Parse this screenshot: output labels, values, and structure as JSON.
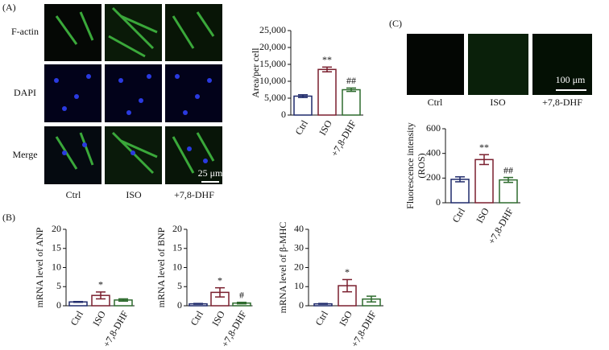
{
  "figure": {
    "panel_a": "(A)",
    "panel_b": "(B)",
    "panel_c": "(C)",
    "rows": [
      "F-actin",
      "DAPI",
      "Merge"
    ],
    "columns_a": [
      "Ctrl",
      "ISO",
      "+7,8-DHF"
    ],
    "scale_a": "25 μm",
    "columns_c": [
      "Ctrl",
      "ISO",
      "+7,8-DHF"
    ],
    "scale_c": "100 μm"
  },
  "chart_data": [
    {
      "type": "bar",
      "y_label": "Area/per cell",
      "categories": [
        "Ctrl",
        "ISO",
        "+7,8-DHF"
      ],
      "values": [
        5600,
        13500,
        7500
      ],
      "errors": [
        400,
        700,
        500
      ],
      "colors": [
        "#1f2a6b",
        "#7a1f2e",
        "#2e6b2e"
      ],
      "annotations": [
        null,
        "**",
        "##"
      ],
      "ylim": [
        0,
        25000
      ],
      "yticks": [
        0,
        {
          "value": 5000,
          "label": "5,000"
        },
        {
          "value": 10000,
          "label": "10,000"
        },
        {
          "value": 15000,
          "label": "15,000"
        },
        {
          "value": 20000,
          "label": "20,000"
        },
        {
          "value": 25000,
          "label": "25,000"
        }
      ]
    },
    {
      "type": "bar",
      "y_label": [
        "Fluorescence intensity",
        "(ROS)"
      ],
      "categories": [
        "Ctrl",
        "ISO",
        "+7,8-DHF"
      ],
      "values": [
        190,
        350,
        185
      ],
      "errors": [
        20,
        40,
        20
      ],
      "colors": [
        "#1f2a6b",
        "#7a1f2e",
        "#2e6b2e"
      ],
      "annotations": [
        null,
        "**",
        "##"
      ],
      "ylim": [
        0,
        600
      ],
      "yticks": [
        0,
        200,
        400,
        600
      ]
    },
    {
      "type": "bar",
      "y_label": "mRNA level of ANP",
      "categories": [
        "Ctrl",
        "ISO",
        "+7,8-DHF"
      ],
      "values": [
        1,
        2.7,
        1.5
      ],
      "errors": [
        0.1,
        0.9,
        0.3
      ],
      "colors": [
        "#1f2a6b",
        "#7a1f2e",
        "#2e6b2e"
      ],
      "annotations": [
        null,
        "*",
        null
      ],
      "ylim": [
        0,
        20
      ],
      "yticks": [
        0,
        5,
        10,
        15,
        20
      ]
    },
    {
      "type": "bar",
      "y_label": "mRNA level of BNP",
      "categories": [
        "Ctrl",
        "ISO",
        "+7,8-DHF"
      ],
      "values": [
        0.5,
        3.5,
        0.7
      ],
      "errors": [
        0.1,
        1.2,
        0.2
      ],
      "colors": [
        "#1f2a6b",
        "#7a1f2e",
        "#2e6b2e"
      ],
      "annotations": [
        null,
        "*",
        "#"
      ],
      "ylim": [
        0,
        20
      ],
      "yticks": [
        0,
        5,
        10,
        15,
        20
      ]
    },
    {
      "type": "bar",
      "y_label": "mRNA level of β-MHC",
      "categories": [
        "Ctrl",
        "ISO",
        "+7,8-DHF"
      ],
      "values": [
        1,
        10.5,
        3.5
      ],
      "errors": [
        0.2,
        3.2,
        1.5
      ],
      "colors": [
        "#1f2a6b",
        "#7a1f2e",
        "#2e6b2e"
      ],
      "annotations": [
        null,
        "*",
        null
      ],
      "ylim": [
        0,
        40
      ],
      "yticks": [
        0,
        10,
        20,
        30,
        40
      ]
    }
  ]
}
